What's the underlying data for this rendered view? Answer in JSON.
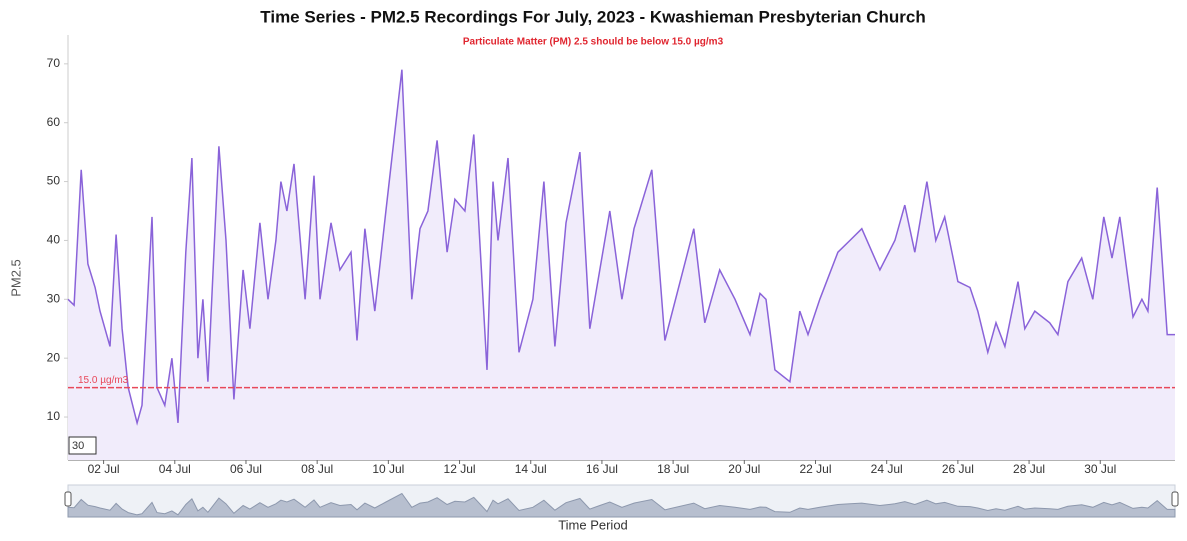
{
  "chart_data": {
    "type": "line",
    "title": "Time Series - PM2.5 Recordings For July, 2023 - Kwashieman Presbyterian Church",
    "subtitle": "Particulate Matter (PM) 2.5 should be below 15.0 µg/m3",
    "ylabel": "PM2.5",
    "xlabel": "Time Period",
    "zoom_label": "30",
    "threshold": {
      "value": 15,
      "label": "15.0 µg/m3"
    },
    "threshold_color": "#e8485a",
    "color": "#8a63d9",
    "area_color": "#f1ecfb",
    "grid": false,
    "ylim": [
      2.7,
      74.9
    ],
    "yticks": [
      10,
      20,
      30,
      40,
      50,
      60,
      70
    ],
    "xlim": [
      1,
      32.1
    ],
    "xticks": [
      {
        "value": 2,
        "label": "02 Jul"
      },
      {
        "value": 4,
        "label": "04 Jul"
      },
      {
        "value": 6,
        "label": "06 Jul"
      },
      {
        "value": 8,
        "label": "08 Jul"
      },
      {
        "value": 10,
        "label": "10 Jul"
      },
      {
        "value": 12,
        "label": "12 Jul"
      },
      {
        "value": 14,
        "label": "14 Jul"
      },
      {
        "value": 16,
        "label": "16 Jul"
      },
      {
        "value": 18,
        "label": "18 Jul"
      },
      {
        "value": 20,
        "label": "20 Jul"
      },
      {
        "value": 22,
        "label": "22 Jul"
      },
      {
        "value": 24,
        "label": "24 Jul"
      },
      {
        "value": 26,
        "label": "26 Jul"
      },
      {
        "value": 28,
        "label": "28 Jul"
      },
      {
        "value": 30,
        "label": "30 Jul"
      }
    ],
    "x": [
      1.0,
      1.17,
      1.37,
      1.56,
      1.76,
      1.9,
      2.18,
      2.35,
      2.52,
      2.69,
      2.94,
      3.08,
      3.36,
      3.5,
      3.72,
      3.92,
      4.09,
      4.31,
      4.48,
      4.65,
      4.79,
      4.93,
      5.24,
      5.44,
      5.66,
      5.92,
      6.11,
      6.39,
      6.62,
      6.84,
      6.98,
      7.15,
      7.35,
      7.66,
      7.91,
      8.08,
      8.39,
      8.64,
      8.95,
      9.12,
      9.34,
      9.62,
      9.93,
      10.38,
      10.66,
      10.89,
      11.11,
      11.37,
      11.65,
      11.87,
      12.15,
      12.4,
      12.77,
      12.94,
      13.08,
      13.36,
      13.67,
      14.06,
      14.37,
      14.68,
      14.99,
      15.38,
      15.66,
      15.94,
      16.22,
      16.56,
      16.9,
      17.4,
      17.77,
      18.58,
      18.89,
      19.31,
      19.74,
      20.16,
      20.44,
      20.61,
      20.86,
      21.28,
      21.56,
      21.79,
      22.12,
      22.63,
      22.97,
      23.3,
      23.81,
      24.23,
      24.51,
      24.79,
      25.13,
      25.38,
      25.63,
      26.0,
      26.34,
      26.56,
      26.84,
      27.07,
      27.32,
      27.69,
      27.88,
      28.16,
      28.58,
      28.81,
      29.09,
      29.48,
      29.79,
      30.1,
      30.33,
      30.55,
      30.92,
      31.17,
      31.34,
      31.6,
      31.88,
      32.1
    ],
    "values": [
      30,
      29,
      52,
      36,
      32,
      28,
      22,
      41,
      25,
      15,
      9,
      12,
      44,
      15,
      12,
      20,
      9,
      38,
      54,
      20,
      30,
      16,
      56,
      40,
      13,
      35,
      25,
      43,
      30,
      40,
      50,
      45,
      53,
      30,
      51,
      30,
      43,
      35,
      38,
      23,
      42,
      28,
      45,
      69,
      30,
      42,
      45,
      57,
      38,
      47,
      45,
      58,
      18,
      50,
      40,
      54,
      21,
      30,
      50,
      22,
      43,
      55,
      25,
      35,
      45,
      30,
      42,
      52,
      23,
      42,
      26,
      35,
      30,
      24,
      31,
      30,
      18,
      16,
      28,
      24,
      30,
      38,
      40,
      42,
      35,
      40,
      46,
      38,
      50,
      40,
      44,
      33,
      32,
      28,
      21,
      26,
      22,
      33,
      25,
      28,
      26,
      24,
      33,
      37,
      30,
      44,
      37,
      44,
      27,
      30,
      28,
      49,
      24,
      24
    ]
  }
}
